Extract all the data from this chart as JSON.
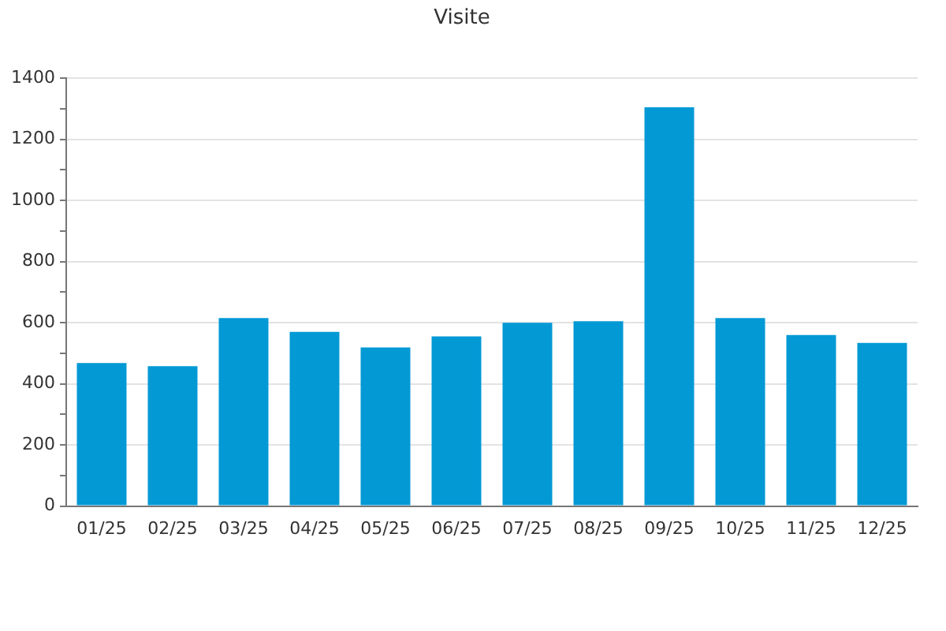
{
  "chart_data": {
    "type": "bar",
    "title": "Visite",
    "categories": [
      "01/25",
      "02/25",
      "03/25",
      "04/25",
      "05/25",
      "06/25",
      "07/25",
      "08/25",
      "09/25",
      "10/25",
      "11/25",
      "12/25"
    ],
    "values": [
      468,
      458,
      615,
      570,
      519,
      555,
      600,
      605,
      1305,
      615,
      560,
      534
    ],
    "color": "#0399d5",
    "ylim": [
      0,
      1400
    ],
    "yticks": [
      0,
      {
        "value": 100,
        "label": null
      },
      200,
      {
        "value": 300,
        "label": null
      },
      400,
      {
        "value": 500,
        "label": null
      },
      600,
      {
        "value": 700,
        "label": null
      },
      800,
      {
        "value": 900,
        "label": null
      },
      1000,
      {
        "value": 1100,
        "label": null
      },
      1200,
      {
        "value": 1300,
        "label": null
      },
      1400
    ],
    "grid": "y",
    "legend": false
  }
}
